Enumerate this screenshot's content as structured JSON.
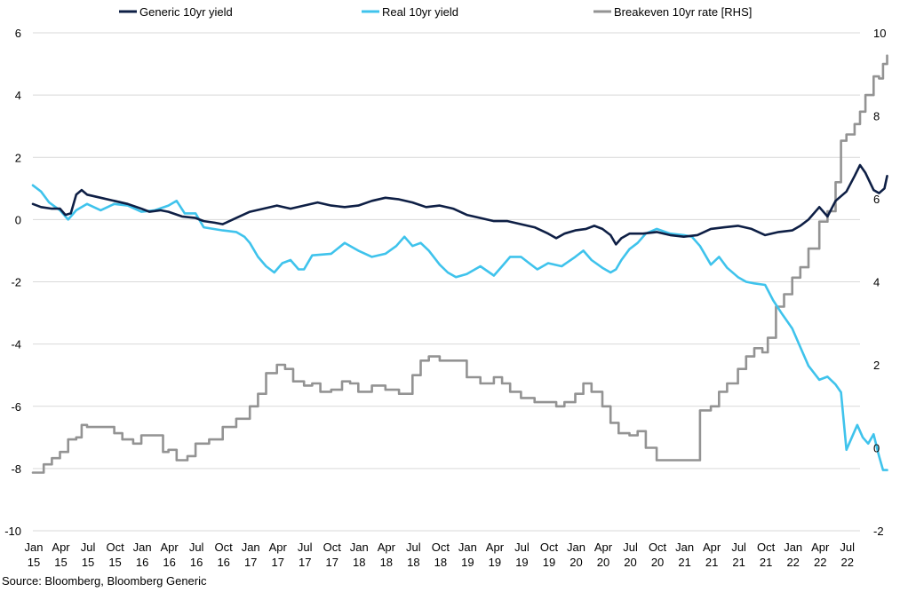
{
  "chart_data": {
    "type": "line",
    "source": "Source: Bloomberg, Bloomberg Generic",
    "y_left": {
      "ylim": [
        -10,
        6
      ],
      "ticks": [
        6,
        4,
        2,
        0,
        -2,
        -4,
        -6,
        -8,
        -10
      ]
    },
    "y_right": {
      "ylim": [
        -2,
        10
      ],
      "ticks": [
        10,
        8,
        6,
        4,
        2,
        0,
        -2
      ]
    },
    "grid": true,
    "legend_position": "top",
    "x_labels": [
      [
        "Jan",
        "15"
      ],
      [
        "Apr",
        "15"
      ],
      [
        "Jul",
        "15"
      ],
      [
        "Oct",
        "15"
      ],
      [
        "Jan",
        "16"
      ],
      [
        "Apr",
        "16"
      ],
      [
        "Jul",
        "16"
      ],
      [
        "Oct",
        "16"
      ],
      [
        "Jan",
        "17"
      ],
      [
        "Apr",
        "17"
      ],
      [
        "Jul",
        "17"
      ],
      [
        "Oct",
        "17"
      ],
      [
        "Jan",
        "18"
      ],
      [
        "Apr",
        "18"
      ],
      [
        "Jul",
        "18"
      ],
      [
        "Oct",
        "18"
      ],
      [
        "Jan",
        "19"
      ],
      [
        "Apr",
        "19"
      ],
      [
        "Jul",
        "19"
      ],
      [
        "Oct",
        "19"
      ],
      [
        "Jan",
        "20"
      ],
      [
        "Apr",
        "20"
      ],
      [
        "Jul",
        "20"
      ],
      [
        "Oct",
        "20"
      ],
      [
        "Jan",
        "21"
      ],
      [
        "Apr",
        "21"
      ],
      [
        "Jul",
        "21"
      ],
      [
        "Oct",
        "21"
      ],
      [
        "Jan",
        "22"
      ],
      [
        "Apr",
        "22"
      ],
      [
        "Jul",
        "22"
      ]
    ],
    "series": [
      {
        "name": "Generic 10yr yield",
        "axis": "left",
        "color": "#0e1f45",
        "points": [
          [
            0,
            0.5
          ],
          [
            0.3,
            0.4
          ],
          [
            0.7,
            0.35
          ],
          [
            1,
            0.35
          ],
          [
            1.2,
            0.15
          ],
          [
            1.4,
            0.2
          ],
          [
            1.6,
            0.8
          ],
          [
            1.8,
            0.95
          ],
          [
            2,
            0.8
          ],
          [
            2.5,
            0.7
          ],
          [
            3,
            0.6
          ],
          [
            3.5,
            0.5
          ],
          [
            4,
            0.35
          ],
          [
            4.3,
            0.25
          ],
          [
            4.7,
            0.3
          ],
          [
            5,
            0.25
          ],
          [
            5.5,
            0.1
          ],
          [
            6,
            0.05
          ],
          [
            6.3,
            -0.05
          ],
          [
            6.7,
            -0.1
          ],
          [
            7,
            -0.15
          ],
          [
            7.5,
            0.05
          ],
          [
            8,
            0.25
          ],
          [
            8.5,
            0.35
          ],
          [
            9,
            0.45
          ],
          [
            9.5,
            0.35
          ],
          [
            10,
            0.45
          ],
          [
            10.5,
            0.55
          ],
          [
            11,
            0.45
          ],
          [
            11.5,
            0.4
          ],
          [
            12,
            0.45
          ],
          [
            12.5,
            0.6
          ],
          [
            13,
            0.7
          ],
          [
            13.5,
            0.65
          ],
          [
            14,
            0.55
          ],
          [
            14.5,
            0.4
          ],
          [
            15,
            0.45
          ],
          [
            15.5,
            0.35
          ],
          [
            16,
            0.15
          ],
          [
            16.5,
            0.05
          ],
          [
            17,
            -0.05
          ],
          [
            17.5,
            -0.05
          ],
          [
            18,
            -0.15
          ],
          [
            18.5,
            -0.25
          ],
          [
            19,
            -0.45
          ],
          [
            19.3,
            -0.6
          ],
          [
            19.6,
            -0.45
          ],
          [
            20,
            -0.35
          ],
          [
            20.4,
            -0.3
          ],
          [
            20.7,
            -0.2
          ],
          [
            21,
            -0.3
          ],
          [
            21.3,
            -0.5
          ],
          [
            21.5,
            -0.8
          ],
          [
            21.7,
            -0.6
          ],
          [
            22,
            -0.45
          ],
          [
            22.5,
            -0.45
          ],
          [
            23,
            -0.4
          ],
          [
            23.5,
            -0.5
          ],
          [
            24,
            -0.55
          ],
          [
            24.5,
            -0.5
          ],
          [
            25,
            -0.3
          ],
          [
            25.5,
            -0.25
          ],
          [
            26,
            -0.2
          ],
          [
            26.5,
            -0.3
          ],
          [
            27,
            -0.5
          ],
          [
            27.5,
            -0.4
          ],
          [
            28,
            -0.35
          ],
          [
            28.3,
            -0.2
          ],
          [
            28.6,
            0.0
          ],
          [
            29,
            0.4
          ],
          [
            29.3,
            0.1
          ],
          [
            29.6,
            0.6
          ],
          [
            30,
            0.9
          ],
          [
            30.3,
            1.4
          ],
          [
            30.5,
            1.75
          ],
          [
            30.7,
            1.5
          ],
          [
            31,
            0.95
          ],
          [
            31.2,
            0.85
          ],
          [
            31.4,
            1.0
          ],
          [
            31.5,
            1.4
          ]
        ]
      },
      {
        "name": "Real 10yr yield",
        "axis": "left",
        "color": "#3fc3ec",
        "points": [
          [
            0,
            1.1
          ],
          [
            0.3,
            0.9
          ],
          [
            0.6,
            0.55
          ],
          [
            1,
            0.3
          ],
          [
            1.3,
            0.0
          ],
          [
            1.6,
            0.3
          ],
          [
            2,
            0.5
          ],
          [
            2.5,
            0.3
          ],
          [
            3,
            0.5
          ],
          [
            3.5,
            0.45
          ],
          [
            4,
            0.25
          ],
          [
            4.5,
            0.3
          ],
          [
            5,
            0.45
          ],
          [
            5.3,
            0.6
          ],
          [
            5.6,
            0.2
          ],
          [
            6,
            0.2
          ],
          [
            6.3,
            -0.25
          ],
          [
            7,
            -0.35
          ],
          [
            7.5,
            -0.4
          ],
          [
            7.8,
            -0.55
          ],
          [
            8,
            -0.75
          ],
          [
            8.3,
            -1.2
          ],
          [
            8.6,
            -1.5
          ],
          [
            8.9,
            -1.7
          ],
          [
            9.2,
            -1.4
          ],
          [
            9.5,
            -1.3
          ],
          [
            9.8,
            -1.6
          ],
          [
            10,
            -1.6
          ],
          [
            10.3,
            -1.15
          ],
          [
            11,
            -1.1
          ],
          [
            11.5,
            -0.75
          ],
          [
            12,
            -1.0
          ],
          [
            12.5,
            -1.2
          ],
          [
            13,
            -1.1
          ],
          [
            13.4,
            -0.85
          ],
          [
            13.7,
            -0.55
          ],
          [
            14,
            -0.85
          ],
          [
            14.3,
            -0.75
          ],
          [
            14.6,
            -1.0
          ],
          [
            15,
            -1.45
          ],
          [
            15.3,
            -1.7
          ],
          [
            15.6,
            -1.85
          ],
          [
            16,
            -1.75
          ],
          [
            16.5,
            -1.5
          ],
          [
            17,
            -1.8
          ],
          [
            17.3,
            -1.5
          ],
          [
            17.6,
            -1.2
          ],
          [
            18,
            -1.2
          ],
          [
            18.3,
            -1.4
          ],
          [
            18.6,
            -1.6
          ],
          [
            19,
            -1.4
          ],
          [
            19.5,
            -1.5
          ],
          [
            20,
            -1.2
          ],
          [
            20.3,
            -1.0
          ],
          [
            20.6,
            -1.3
          ],
          [
            21,
            -1.55
          ],
          [
            21.3,
            -1.7
          ],
          [
            21.5,
            -1.6
          ],
          [
            21.7,
            -1.3
          ],
          [
            22,
            -0.95
          ],
          [
            22.3,
            -0.75
          ],
          [
            22.6,
            -0.45
          ],
          [
            23,
            -0.3
          ],
          [
            23.5,
            -0.45
          ],
          [
            24,
            -0.5
          ],
          [
            24.3,
            -0.55
          ],
          [
            24.6,
            -0.85
          ],
          [
            25,
            -1.45
          ],
          [
            25.3,
            -1.2
          ],
          [
            25.6,
            -1.55
          ],
          [
            26,
            -1.85
          ],
          [
            26.3,
            -2.0
          ],
          [
            26.6,
            -2.05
          ],
          [
            27,
            -2.1
          ],
          [
            27.3,
            -2.6
          ],
          [
            27.6,
            -3.0
          ],
          [
            28,
            -3.5
          ],
          [
            28.3,
            -4.1
          ],
          [
            28.6,
            -4.7
          ],
          [
            29,
            -5.15
          ],
          [
            29.3,
            -5.05
          ],
          [
            29.6,
            -5.3
          ],
          [
            29.8,
            -5.55
          ],
          [
            30,
            -7.4
          ],
          [
            30.2,
            -7.0
          ],
          [
            30.4,
            -6.6
          ],
          [
            30.6,
            -7.0
          ],
          [
            30.8,
            -7.2
          ],
          [
            31,
            -6.9
          ],
          [
            31.2,
            -7.6
          ],
          [
            31.35,
            -8.05
          ],
          [
            31.5,
            -8.05
          ]
        ]
      },
      {
        "name": "Breakeven 10yr rate [RHS]",
        "axis": "right",
        "color": "#939393",
        "points": [
          [
            0,
            -0.6
          ],
          [
            0.2,
            -0.6
          ],
          [
            0.4,
            -0.4
          ],
          [
            0.7,
            -0.25
          ],
          [
            1,
            -0.1
          ],
          [
            1.3,
            0.2
          ],
          [
            1.6,
            0.25
          ],
          [
            1.8,
            0.55
          ],
          [
            2,
            0.5
          ],
          [
            2.5,
            0.5
          ],
          [
            3,
            0.35
          ],
          [
            3.3,
            0.2
          ],
          [
            3.7,
            0.1
          ],
          [
            4,
            0.3
          ],
          [
            4.5,
            0.3
          ],
          [
            4.8,
            -0.1
          ],
          [
            5,
            -0.05
          ],
          [
            5.3,
            -0.3
          ],
          [
            5.7,
            -0.2
          ],
          [
            6,
            0.1
          ],
          [
            6.5,
            0.2
          ],
          [
            7,
            0.5
          ],
          [
            7.5,
            0.7
          ],
          [
            8,
            1.0
          ],
          [
            8.3,
            1.3
          ],
          [
            8.6,
            1.8
          ],
          [
            9,
            2.0
          ],
          [
            9.3,
            1.9
          ],
          [
            9.6,
            1.6
          ],
          [
            10,
            1.5
          ],
          [
            10.3,
            1.55
          ],
          [
            10.6,
            1.35
          ],
          [
            11,
            1.4
          ],
          [
            11.4,
            1.6
          ],
          [
            11.7,
            1.55
          ],
          [
            12,
            1.35
          ],
          [
            12.5,
            1.5
          ],
          [
            13,
            1.4
          ],
          [
            13.5,
            1.3
          ],
          [
            14,
            1.75
          ],
          [
            14.3,
            2.1
          ],
          [
            14.6,
            2.2
          ],
          [
            15,
            2.1
          ],
          [
            15.5,
            2.1
          ],
          [
            16,
            1.7
          ],
          [
            16.5,
            1.55
          ],
          [
            17,
            1.7
          ],
          [
            17.3,
            1.55
          ],
          [
            17.6,
            1.35
          ],
          [
            18,
            1.2
          ],
          [
            18.5,
            1.1
          ],
          [
            19,
            1.1
          ],
          [
            19.3,
            1.0
          ],
          [
            19.6,
            1.1
          ],
          [
            20,
            1.3
          ],
          [
            20.3,
            1.55
          ],
          [
            20.6,
            1.35
          ],
          [
            21,
            1.0
          ],
          [
            21.3,
            0.6
          ],
          [
            21.6,
            0.35
          ],
          [
            22,
            0.3
          ],
          [
            22.3,
            0.4
          ],
          [
            22.6,
            0.0
          ],
          [
            23,
            -0.3
          ],
          [
            23.5,
            -0.3
          ],
          [
            24,
            -0.3
          ],
          [
            24.3,
            -0.3
          ],
          [
            24.6,
            0.9
          ],
          [
            25,
            1.0
          ],
          [
            25.3,
            1.35
          ],
          [
            25.6,
            1.55
          ],
          [
            26,
            1.9
          ],
          [
            26.3,
            2.2
          ],
          [
            26.6,
            2.4
          ],
          [
            26.9,
            2.3
          ],
          [
            27.1,
            2.65
          ],
          [
            27.4,
            3.4
          ],
          [
            27.7,
            3.7
          ],
          [
            28,
            4.1
          ],
          [
            28.3,
            4.35
          ],
          [
            28.6,
            4.8
          ],
          [
            29,
            5.45
          ],
          [
            29.3,
            5.7
          ],
          [
            29.6,
            6.4
          ],
          [
            29.8,
            7.4
          ],
          [
            30,
            7.55
          ],
          [
            30.3,
            7.8
          ],
          [
            30.5,
            8.1
          ],
          [
            30.7,
            8.5
          ],
          [
            31,
            8.95
          ],
          [
            31.2,
            8.9
          ],
          [
            31.35,
            9.25
          ],
          [
            31.5,
            9.45
          ]
        ]
      }
    ]
  }
}
